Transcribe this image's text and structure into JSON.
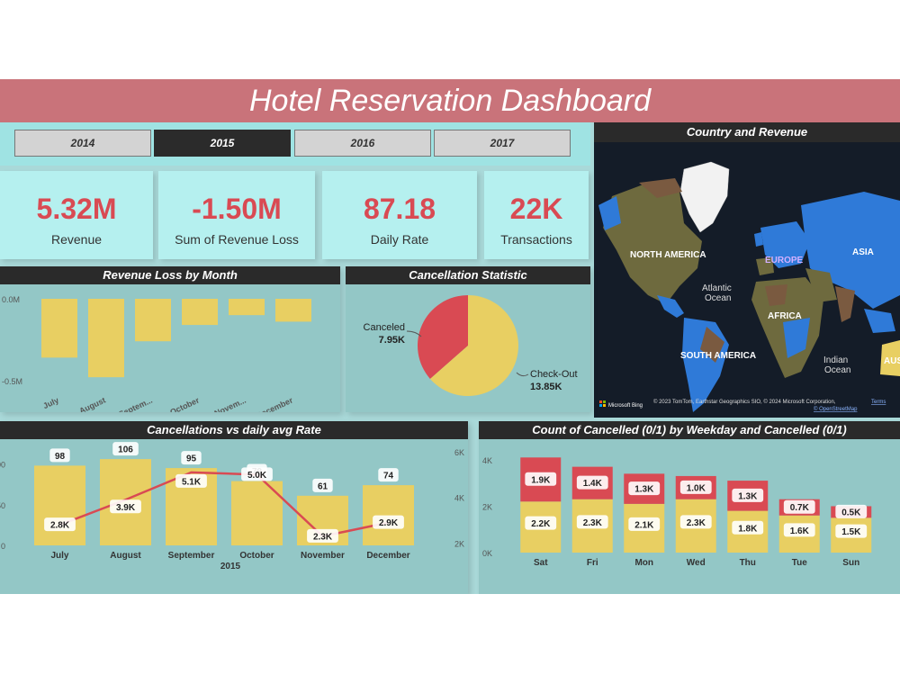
{
  "title": "Hotel Reservation Dashboard",
  "years": [
    {
      "label": "2014",
      "selected": false
    },
    {
      "label": "2015",
      "selected": true
    },
    {
      "label": "2016",
      "selected": false
    },
    {
      "label": "2017",
      "selected": false
    }
  ],
  "kpis": [
    {
      "value": "5.32M",
      "label": "Revenue"
    },
    {
      "value": "-1.50M",
      "label": "Sum of Revenue Loss"
    },
    {
      "value": "87.18",
      "label": "Daily Rate"
    },
    {
      "value": "22K",
      "label": "Transactions"
    }
  ],
  "map": {
    "title": "Country and Revenue",
    "labels": {
      "north_america": "NORTH AMERICA",
      "south_america": "SOUTH AMERICA",
      "europe": "EUROPE",
      "asia": "ASIA",
      "africa": "AFRICA",
      "atlantic_1": "Atlantic",
      "atlantic_2": "Ocean",
      "indian_1": "Indian",
      "indian_2": "Ocean",
      "aus_partial": "AUS"
    },
    "brand": "Microsoft Bing",
    "copyright": "© 2023 TomTom, Earthstar Geographics SIO, © 2024 Microsoft Corporation,",
    "terms_link": "Terms",
    "osm_link": "© OpenStreetMap",
    "colors": {
      "ocean": "#141c28",
      "land_blue": "#2f7ad8",
      "land_olive": "#6e6a3e",
      "land_brown": "#7a5a40",
      "ice": "#f2f2f2"
    }
  },
  "colors": {
    "bar": "#e8cf62",
    "red": "#d94a53",
    "line": "#d94a53",
    "dark": "#2a2a2a"
  },
  "charts": {
    "revenue_loss": {
      "title": "Revenue Loss by Month",
      "chart_data": {
        "type": "bar",
        "categories": [
          "July",
          "August",
          "Septem...",
          "October",
          "Novem...",
          "December"
        ],
        "values": [
          -0.36,
          -0.48,
          -0.26,
          -0.16,
          -0.1,
          -0.14
        ],
        "ylim": [
          -0.65,
          0
        ],
        "yticks": [
          {
            "value": 0,
            "label": "0.0M"
          },
          {
            "value": -0.5,
            "label": "-0.5M"
          }
        ]
      }
    },
    "cancellation": {
      "title": "Cancellation Statistic",
      "chart_data": {
        "type": "pie",
        "slices": [
          {
            "label": "Canceled",
            "value_label": "7.95K",
            "value": 7.95,
            "color": "#d94a53"
          },
          {
            "label": "Check-Out",
            "value_label": "13.85K",
            "value": 13.85,
            "color": "#e8cf62"
          }
        ]
      }
    },
    "cancel_vs_rate": {
      "title": "Cancellations vs daily avg Rate",
      "chart_data": {
        "type": "bar",
        "categories": [
          "July",
          "August",
          "September",
          "October",
          "November",
          "December"
        ],
        "xlabel": "2015",
        "bar_values": [
          98,
          106,
          95,
          79,
          61,
          74
        ],
        "bar_labels": [
          "98",
          "106",
          "95",
          "79",
          "61",
          "74"
        ],
        "line_values": [
          2.8,
          3.9,
          5.1,
          5.0,
          2.3,
          2.9
        ],
        "line_labels": [
          "2.8K",
          "3.9K",
          "5.1K",
          "5.0K",
          "2.3K",
          "2.9K"
        ],
        "left_ylim": [
          0,
          115
        ],
        "left_ticks": [
          {
            "value": 0,
            "label": "0"
          },
          {
            "value": 50,
            "label": "50"
          },
          {
            "value": 100,
            "label": "100"
          }
        ],
        "right_ylim": [
          1.9,
          6
        ],
        "right_ticks": [
          {
            "value": 2,
            "label": "2K"
          },
          {
            "value": 4,
            "label": "4K"
          },
          {
            "value": 6,
            "label": "6K"
          }
        ]
      }
    },
    "weekday": {
      "title": "Count of Cancelled (0/1) by Weekday and Cancelled (0/1)",
      "chart_data": {
        "type": "bar",
        "stacked": true,
        "categories": [
          "Sat",
          "Fri",
          "Mon",
          "Wed",
          "Thu",
          "Tue",
          "Sun"
        ],
        "series": [
          {
            "values": [
              2.2,
              2.3,
              2.1,
              2.3,
              1.8,
              1.6,
              1.5
            ],
            "labels": [
              "2.2K",
              "2.3K",
              "2.1K",
              "2.3K",
              "1.8K",
              "1.6K",
              "1.5K"
            ],
            "color": "#e8cf62"
          },
          {
            "values": [
              1.9,
              1.4,
              1.3,
              1.0,
              1.3,
              0.7,
              0.5
            ],
            "labels": [
              "1.9K",
              "1.4K",
              "1.3K",
              "1.0K",
              "1.3K",
              "0.7K",
              "0.5K"
            ],
            "color": "#d94a53"
          }
        ],
        "ylim": [
          0,
          4.5
        ],
        "yticks": [
          {
            "value": 0,
            "label": "0K"
          },
          {
            "value": 2,
            "label": "2K"
          },
          {
            "value": 4,
            "label": "4K"
          }
        ]
      }
    }
  }
}
